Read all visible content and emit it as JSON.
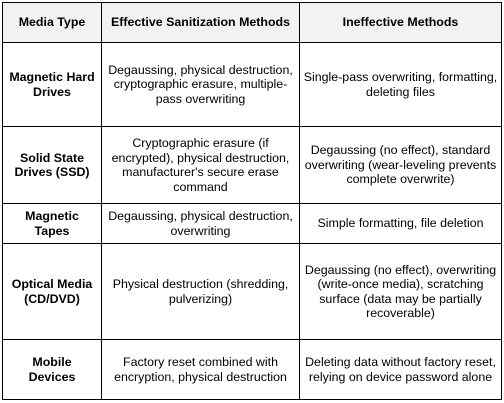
{
  "headers": [
    "Media Type",
    "Effective Sanitization Methods",
    "Ineffective Methods"
  ],
  "rows": [
    {
      "media_type": "Magnetic Hard Drives",
      "effective": "Degaussing, physical destruction, cryptographic erasure, multiple-pass overwriting",
      "ineffective": "Single-pass overwriting, formatting, deleting files"
    },
    {
      "media_type": "Solid State Drives (SSD)",
      "effective": "Cryptographic erasure (if encrypted), physical destruction, manufacturer's secure erase command",
      "ineffective": "Degaussing (no effect), standard overwriting (wear-leveling prevents complete overwrite)"
    },
    {
      "media_type": "Magnetic Tapes",
      "effective": "Degaussing, physical destruction, overwriting",
      "ineffective": "Simple formatting, file deletion"
    },
    {
      "media_type": "Optical Media (CD/DVD)",
      "effective": "Physical destruction (shredding, pulverizing)",
      "ineffective": "Degaussing (no effect), overwriting (write-once media), scratching surface (data may be partially recoverable)"
    },
    {
      "media_type": "Mobile Devices",
      "effective": "Factory reset combined with encryption, physical destruction",
      "ineffective": "Deleting data without factory reset, relying on device password alone"
    }
  ]
}
